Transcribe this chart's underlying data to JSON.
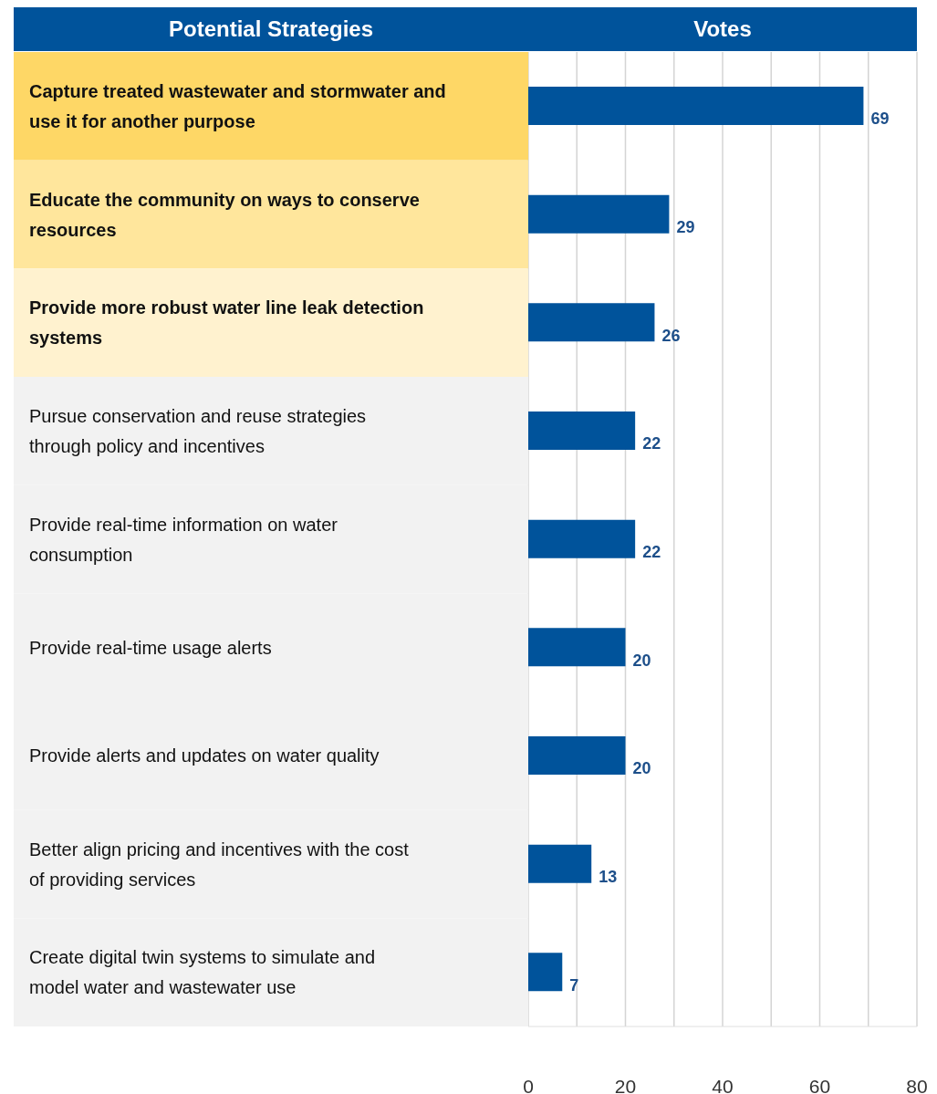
{
  "chart_data": {
    "type": "bar",
    "orientation": "horizontal",
    "ylabel": "Potential Strategies",
    "xlabel": "Votes",
    "categories": [
      "Capture treated wastewater and stormwater and use it for another purpose",
      "Educate the community on ways to conserve resources",
      "Provide more robust water line leak detection systems",
      "Pursue conservation and reuse strategies through policy and incentives",
      "Provide real-time information on water consumption",
      "Provide real-time usage alerts",
      "Provide alerts and updates on water quality",
      "Better align pricing and incentives with the cost of providing services",
      "Create digital twin systems to simulate and model water and wastewater use"
    ],
    "values": [
      69,
      29,
      26,
      22,
      22,
      20,
      20,
      13,
      7
    ],
    "color": "#00539b",
    "xlim": [
      0,
      80
    ],
    "xticks": [
      0,
      {
        "value": 10,
        "label": null
      },
      20,
      {
        "value": 30,
        "label": null
      },
      40,
      {
        "value": 50,
        "label": null
      },
      60,
      {
        "value": 70,
        "label": null
      },
      80
    ],
    "grid": "x",
    "data_labels": true
  }
}
